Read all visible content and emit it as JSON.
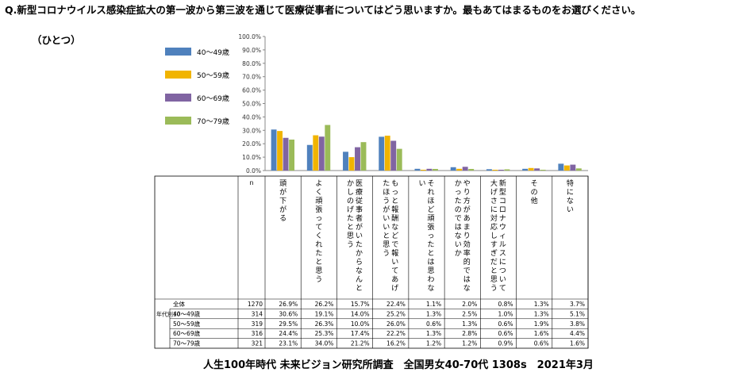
{
  "question": "Q.新型コロナウイルス感染症拡大の第一波から第三波を通じて医療従事者についてはどう思いますか。最もあてはまるものをお選びください。",
  "question_sub": "（ひとつ）",
  "footer": "人生100年時代 未来ビジョン研究所調査　全国男女40-70代 1308s　2021年3月",
  "chart_data": {
    "type": "bar",
    "ylim": [
      0,
      100
    ],
    "yticks": [
      "0.0%",
      "10.0%",
      "20.0%",
      "30.0%",
      "40.0%",
      "50.0%",
      "60.0%",
      "70.0%",
      "80.0%",
      "90.0%",
      "100.0%"
    ],
    "legend_position": "left",
    "categories": [
      "頭が下がる",
      "よく頑張ってくれたと思う",
      "医療従事者がいたからなんとかしのげたと思う",
      "もっと報酬などで報いてあげたほうがいいと思う",
      "それほど頑張ったとは思わない",
      "やり方があまり効率的ではなかったのではないか",
      "新型コロナウィルスについて大げさに対応しすぎだと思う",
      "その他",
      "特にない"
    ],
    "series": [
      {
        "name": "40〜49歳",
        "color": "#4F81BD",
        "values": [
          30.6,
          19.1,
          14.0,
          25.2,
          1.3,
          2.5,
          1.0,
          1.3,
          5.1
        ]
      },
      {
        "name": "50〜59歳",
        "color": "#F1B400",
        "values": [
          29.5,
          26.3,
          10.0,
          26.0,
          0.6,
          1.3,
          0.6,
          1.9,
          3.8
        ]
      },
      {
        "name": "60〜69歳",
        "color": "#8064A2",
        "values": [
          24.4,
          25.3,
          17.4,
          22.2,
          1.3,
          2.8,
          0.6,
          1.6,
          4.4
        ]
      },
      {
        "name": "70〜79歳",
        "color": "#9BBB59",
        "values": [
          23.1,
          34.0,
          21.2,
          16.2,
          1.2,
          1.2,
          0.9,
          0.6,
          1.6
        ]
      }
    ],
    "table": {
      "n_header": "n",
      "group_label": "年代別10",
      "rows": [
        {
          "label": "全体",
          "n": "1270",
          "values": [
            "26.9%",
            "26.2%",
            "15.7%",
            "22.4%",
            "1.1%",
            "2.0%",
            "0.8%",
            "1.3%",
            "3.7%"
          ]
        },
        {
          "label": "40〜49歳",
          "n": "314",
          "values": [
            "30.6%",
            "19.1%",
            "14.0%",
            "25.2%",
            "1.3%",
            "2.5%",
            "1.0%",
            "1.3%",
            "5.1%"
          ]
        },
        {
          "label": "50〜59歳",
          "n": "319",
          "values": [
            "29.5%",
            "26.3%",
            "10.0%",
            "26.0%",
            "0.6%",
            "1.3%",
            "0.6%",
            "1.9%",
            "3.8%"
          ]
        },
        {
          "label": "60〜69歳",
          "n": "316",
          "values": [
            "24.4%",
            "25.3%",
            "17.4%",
            "22.2%",
            "1.3%",
            "2.8%",
            "0.6%",
            "1.6%",
            "4.4%"
          ]
        },
        {
          "label": "70〜79歳",
          "n": "321",
          "values": [
            "23.1%",
            "34.0%",
            "21.2%",
            "16.2%",
            "1.2%",
            "1.2%",
            "0.9%",
            "0.6%",
            "1.6%"
          ]
        }
      ]
    }
  }
}
